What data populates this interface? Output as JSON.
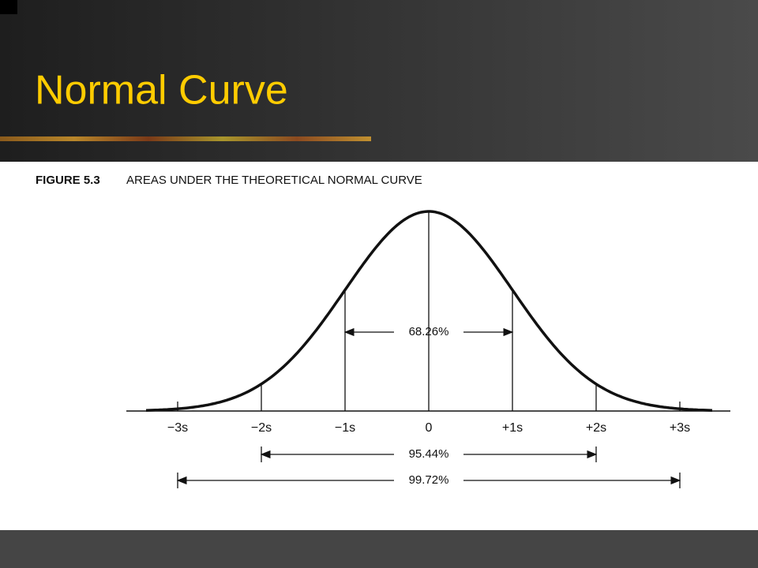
{
  "slide": {
    "title": "Normal Curve"
  },
  "figure": {
    "label": "FIGURE 5.3",
    "caption": "AREAS UNDER THE THEORETICAL NORMAL CURVE",
    "axis_labels": [
      "−3s",
      "−2s",
      "−1s",
      "0",
      "+1s",
      "+2s",
      "+3s"
    ],
    "areas": [
      "68.26%",
      "95.44%",
      "99.72%"
    ]
  }
}
